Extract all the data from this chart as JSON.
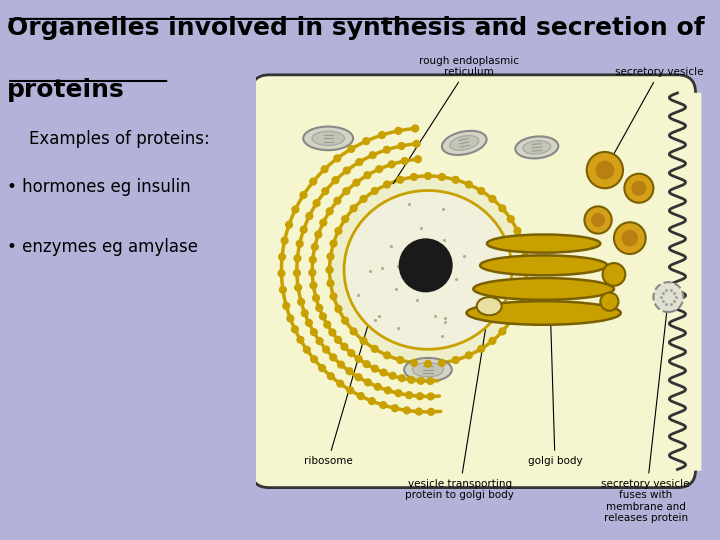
{
  "background_color": "#b3b3d9",
  "title_line1": "Organelles involved in synthesis and secretion of",
  "title_line2": "proteins",
  "title_fontsize": 18,
  "title_color": "#000000",
  "left_text_examples": "Examples of proteins:",
  "left_text_1": "• hormones eg insulin",
  "left_text_2": "• enzymes eg amylase",
  "cell_bg": "#f5f5d0",
  "cell_border": "#333333",
  "golgi_color": "#c8a000",
  "er_color": "#c8a000",
  "nucleus_border": "#c8a000",
  "nucleolus_color": "#1a1a1a",
  "labels": {
    "rough_er": "rough endoplasmic\nreticulum",
    "secretory_vesicle": "secretory vesicle",
    "ribosome": "ribosome",
    "vesicle_transport": "vesicle transporting\nprotein to golgi body",
    "golgi": "golgi body",
    "secretory_fuse": "secretory vesicle\nfuses with\nmembrane and\nreleases protein"
  }
}
